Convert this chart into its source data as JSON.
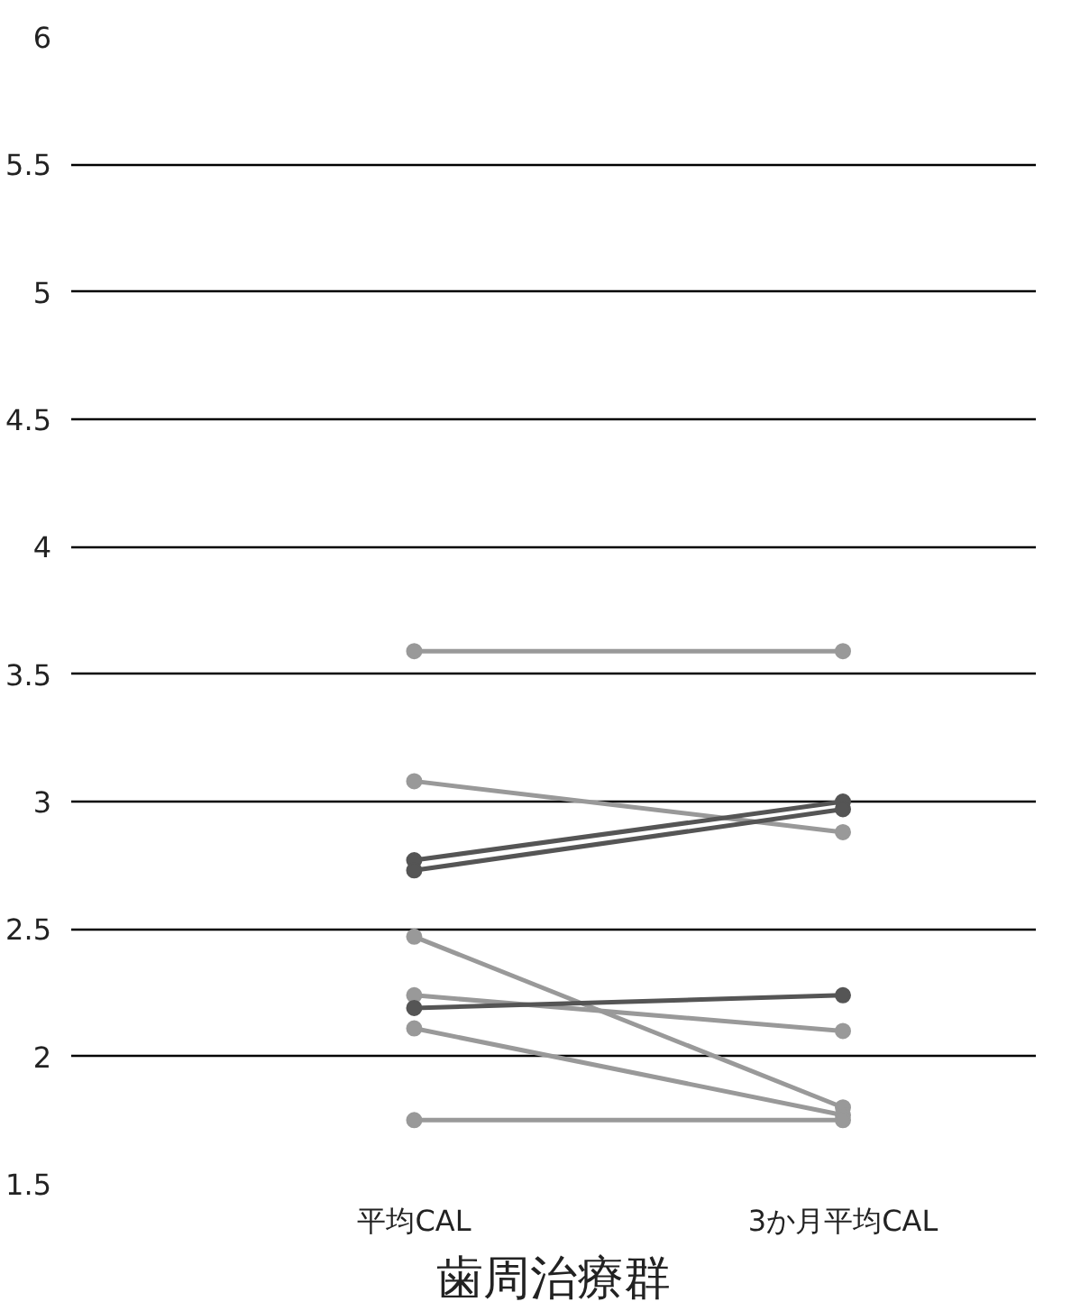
{
  "chart_data": {
    "type": "line",
    "xlabel": "歯周治療群",
    "categories": [
      "平均CAL",
      "3か月平均CAL"
    ],
    "ylim": [
      1.5,
      6
    ],
    "yticks": [
      1.5,
      2,
      2.5,
      3,
      3.5,
      4,
      4.5,
      5,
      5.5,
      6
    ],
    "grid": "y",
    "marker": "circle",
    "line_style": "solid",
    "series": [
      {
        "color": "#999999",
        "values": [
          3.59,
          3.59
        ]
      },
      {
        "color": "#999999",
        "values": [
          3.08,
          2.88
        ]
      },
      {
        "color": "#555555",
        "values": [
          2.77,
          3.0
        ]
      },
      {
        "color": "#555555",
        "values": [
          2.73,
          2.97
        ]
      },
      {
        "color": "#999999",
        "values": [
          2.47,
          1.8
        ]
      },
      {
        "color": "#999999",
        "values": [
          2.24,
          2.1
        ]
      },
      {
        "color": "#555555",
        "values": [
          2.19,
          2.24
        ]
      },
      {
        "color": "#999999",
        "values": [
          2.11,
          1.77
        ]
      },
      {
        "color": "#999999",
        "values": [
          1.75,
          1.75
        ]
      }
    ]
  }
}
